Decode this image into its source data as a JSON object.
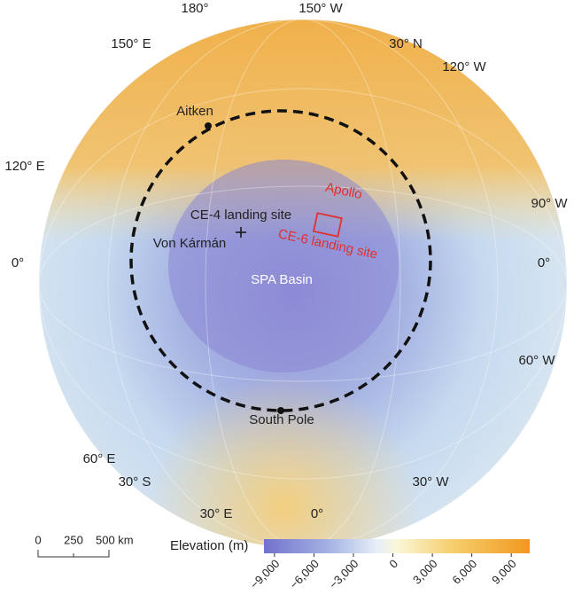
{
  "graticule_labels": {
    "top": "180°",
    "top_right": "150° W",
    "top_left": "150° E",
    "right_upper": "30° N",
    "right_upper2": "120° W",
    "left_upper": "120° E",
    "right_middle": "90° W",
    "left_middle": "0°",
    "right_middle2": "0°",
    "right_lower": "60° W",
    "left_lower": "60° E",
    "bottom_left": "30° S",
    "bottom_right": "30° W",
    "bottom_left2": "30° E",
    "bottom": "0°"
  },
  "features": {
    "aitken": "Aitken",
    "ce4": "CE-4 landing site",
    "von_karman": "Von Kármán",
    "apollo": "Apollo",
    "ce6": "CE-6 landing site",
    "spa": "SPA Basin",
    "south_pole": "South Pole"
  },
  "scale_bar": {
    "labels": [
      "0",
      "250",
      "500 km"
    ]
  },
  "colorbar": {
    "title": "Elevation (m)",
    "lim": [
      -9800,
      10400
    ],
    "ticks": [
      {
        "value": -9000,
        "label": "−9,000"
      },
      {
        "value": -6000,
        "label": "−6,000"
      },
      {
        "value": -3000,
        "label": "−3,000"
      },
      0,
      {
        "value": 3000,
        "label": "3,000"
      },
      {
        "value": 6000,
        "label": "6,000"
      },
      {
        "value": 9000,
        "label": "9,000"
      }
    ]
  }
}
